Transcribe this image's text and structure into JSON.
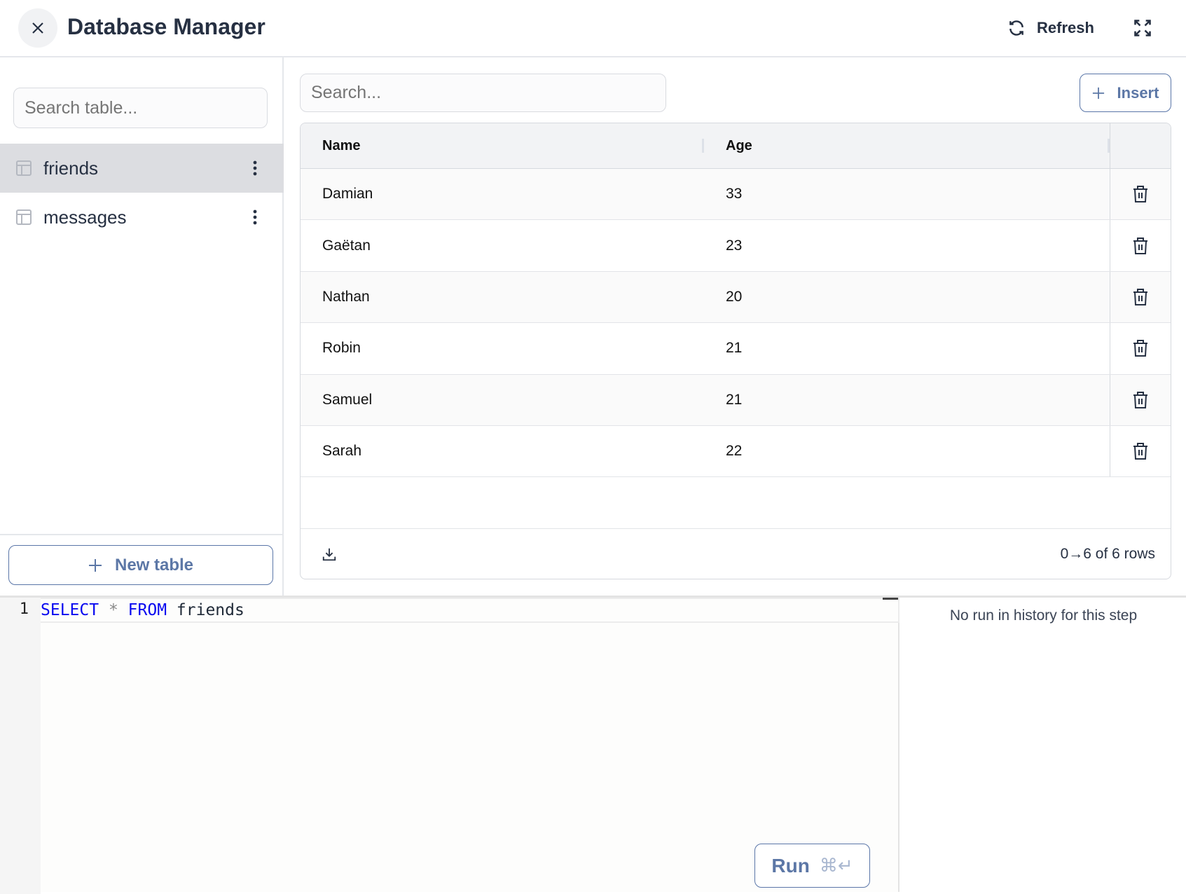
{
  "header": {
    "title": "Database Manager",
    "refresh_label": "Refresh",
    "icons": [
      "close-icon",
      "refresh-icon",
      "expand-icon"
    ]
  },
  "sidebar": {
    "search_placeholder": "Search table...",
    "tables": [
      {
        "name": "friends",
        "selected": true
      },
      {
        "name": "messages",
        "selected": false
      }
    ],
    "new_table_label": "New table"
  },
  "main": {
    "search_placeholder": "Search...",
    "insert_label": "Insert",
    "columns": [
      "Name",
      "Age"
    ],
    "rows": [
      {
        "name": "Damian",
        "age": "33"
      },
      {
        "name": "Gaëtan",
        "age": "23"
      },
      {
        "name": "Nathan",
        "age": "20"
      },
      {
        "name": "Robin",
        "age": "21"
      },
      {
        "name": "Samuel",
        "age": "21"
      },
      {
        "name": "Sarah",
        "age": "22"
      }
    ],
    "pagination": "0→6 of 6 rows"
  },
  "editor": {
    "line_number": "1",
    "kw1": "SELECT",
    "op": "*",
    "kw2": "FROM",
    "ident": "friends",
    "run_label": "Run",
    "run_shortcut": "⌘↵"
  },
  "history": {
    "empty_text": "No run in history for this step"
  },
  "colors": {
    "accent": "#5c77a6",
    "keyword": "#0a0af0",
    "selected_row": "#dcdde1"
  }
}
